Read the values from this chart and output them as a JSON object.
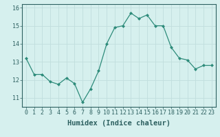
{
  "x": [
    0,
    1,
    2,
    3,
    4,
    5,
    6,
    7,
    8,
    9,
    10,
    11,
    12,
    13,
    14,
    15,
    16,
    17,
    18,
    19,
    20,
    21,
    22,
    23
  ],
  "y": [
    13.2,
    12.3,
    12.3,
    11.9,
    11.75,
    12.1,
    11.8,
    10.75,
    11.5,
    12.5,
    14.0,
    14.9,
    15.0,
    15.7,
    15.4,
    15.6,
    15.0,
    15.0,
    13.8,
    13.2,
    13.1,
    12.6,
    12.8,
    12.8
  ],
  "xlabel": "Humidex (Indice chaleur)",
  "ylim": [
    10.5,
    16.2
  ],
  "xlim": [
    -0.5,
    23.5
  ],
  "yticks": [
    11,
    12,
    13,
    14,
    15,
    16
  ],
  "xticks": [
    0,
    1,
    2,
    3,
    4,
    5,
    6,
    7,
    8,
    9,
    10,
    11,
    12,
    13,
    14,
    15,
    16,
    17,
    18,
    19,
    20,
    21,
    22,
    23
  ],
  "xtick_labels": [
    "0",
    "1",
    "2",
    "3",
    "4",
    "5",
    "6",
    "7",
    "8",
    "9",
    "10",
    "11",
    "12",
    "13",
    "14",
    "15",
    "16",
    "17",
    "18",
    "19",
    "20",
    "21",
    "22",
    "23"
  ],
  "line_color": "#2d8b7a",
  "marker_color": "#2d8b7a",
  "bg_color": "#d6f0ee",
  "grid_color": "#c0dedd",
  "font_color": "#2d6060",
  "xlabel_fontsize": 7.5,
  "tick_fontsize": 6.0
}
